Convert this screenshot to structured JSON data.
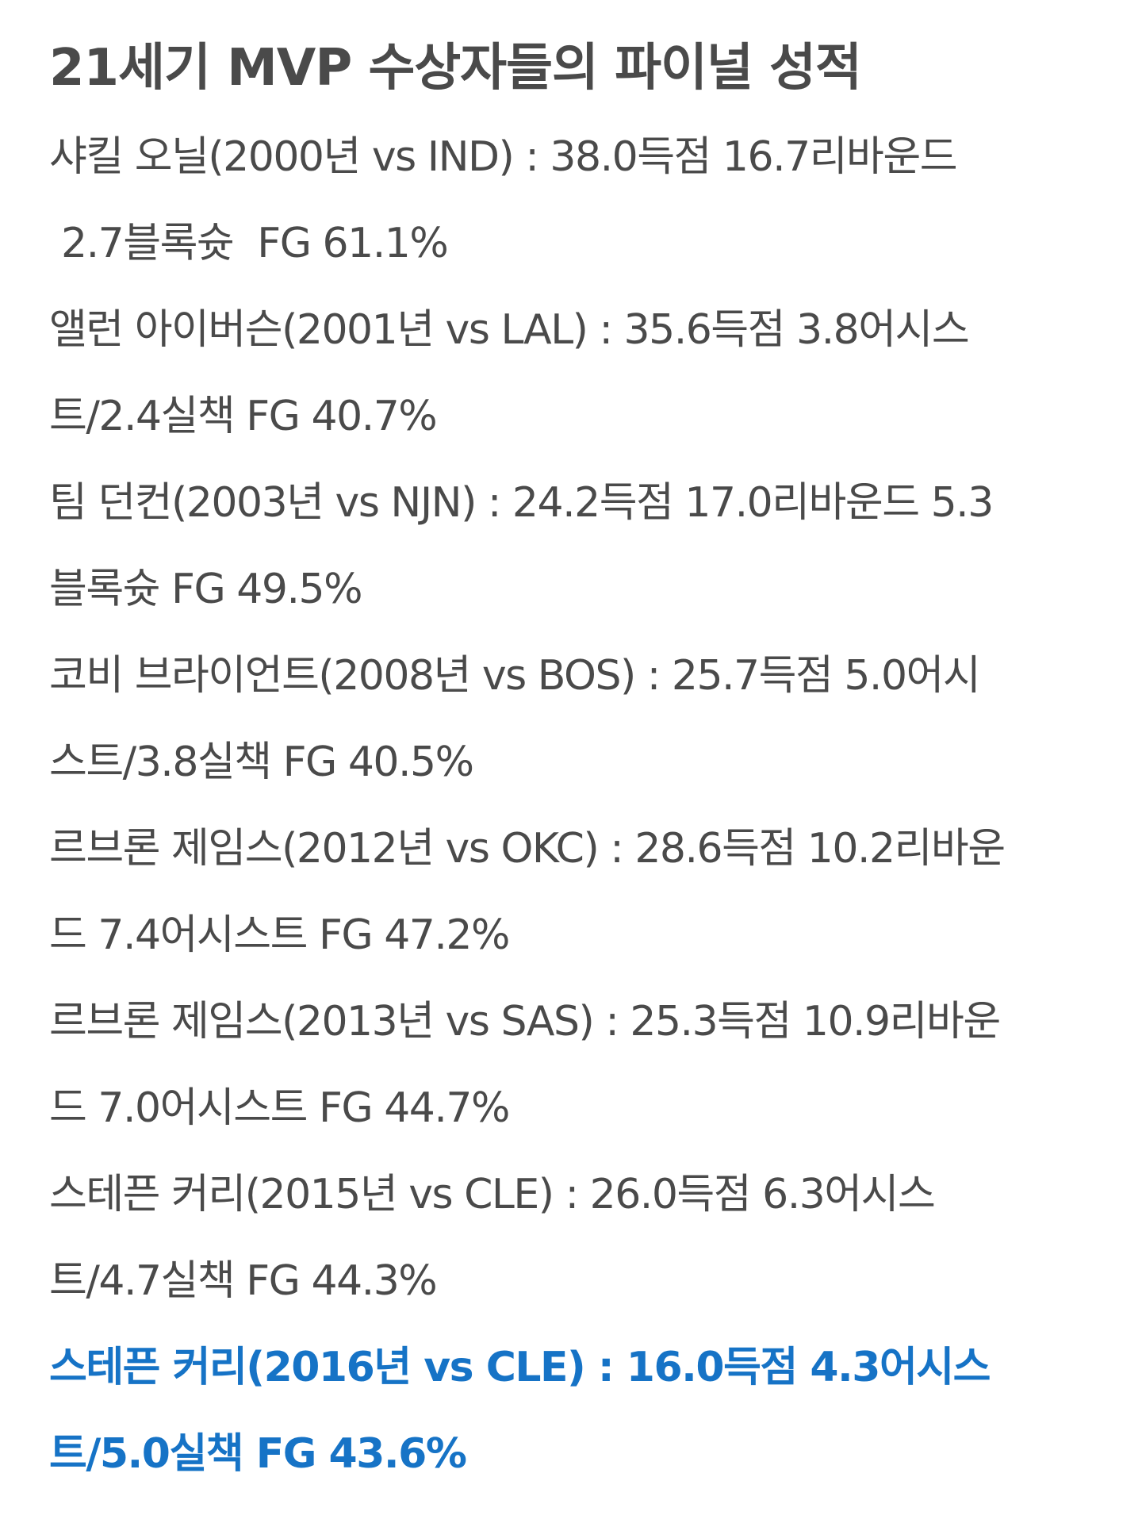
{
  "article": {
    "title": "21세기 MVP 수상자들의 파이널 성적",
    "entries": [
      {
        "line1": "샤킬 오닐(2000년 vs IND) : 38.0득점  16.7리바운드",
        "line2": " 2.7블록슛  FG 61.1%"
      },
      {
        "line1": "앨런 아이버슨(2001년 vs LAL) : 35.6득점  3.8어시스",
        "line2": "트/2.4실책  FG 40.7%"
      },
      {
        "line1": "팀 던컨(2003년 vs NJN) : 24.2득점  17.0리바운드  5.3",
        "line2": "블록슛  FG 49.5%"
      },
      {
        "line1": "코비 브라이언트(2008년 vs BOS) : 25.7득점  5.0어시",
        "line2": "스트/3.8실책  FG 40.5%"
      },
      {
        "line1": "르브론 제임스(2012년 vs OKC) : 28.6득점  10.2리바운",
        "line2": "드  7.4어시스트  FG 47.2%"
      },
      {
        "line1": "르브론 제임스(2013년 vs SAS) : 25.3득점  10.9리바운",
        "line2": "드  7.0어시스트  FG 44.7%"
      },
      {
        "line1": "스테픈 커리(2015년 vs CLE) : 26.0득점  6.3어시스",
        "line2": "트/4.7실책  FG 44.3%"
      },
      {
        "line1": "스테픈 커리(2016년 vs CLE) : 16.0득점  4.3어시스",
        "line2": "트/5.0실책  FG 43.6%"
      }
    ]
  },
  "colors": {
    "text": "#4a4a4a",
    "highlight": "#1673c6",
    "background": "#ffffff"
  }
}
